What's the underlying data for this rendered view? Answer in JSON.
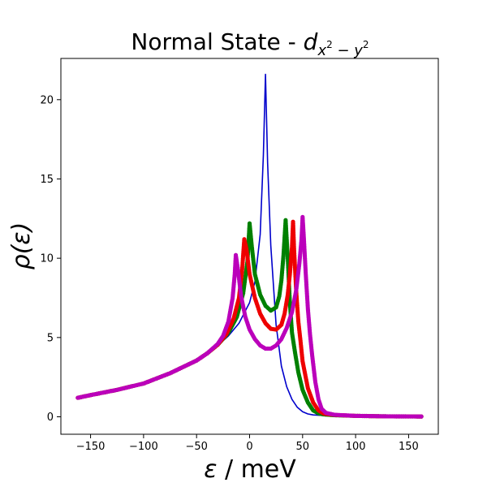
{
  "chart_data": {
    "type": "scatter",
    "title": "Normal State - ",
    "title_math": {
      "base": "d",
      "sub_a": "x",
      "sub_a_sup": "2",
      "sub_mid": " − ",
      "sub_b": "y",
      "sub_b_sup": "2"
    },
    "xlabel_symbol": "ε",
    "xlabel_unit": " / meV",
    "ylabel": "ρ(ε)",
    "xlim": [
      -178,
      178
    ],
    "ylim": [
      -1.1,
      22.6
    ],
    "xticks": [
      -150,
      -100,
      -50,
      0,
      50,
      100,
      150
    ],
    "xtick_labels": [
      "−150",
      "−100",
      "−50",
      "0",
      "50",
      "100",
      "150"
    ],
    "yticks": [
      0,
      5,
      10,
      15,
      20
    ],
    "ytick_labels": [
      "0",
      "5",
      "10",
      "15",
      "20"
    ],
    "series": [
      {
        "name": "blue",
        "style": "line",
        "color": "#0000cc",
        "points": [
          [
            -162,
            1.2
          ],
          [
            -150,
            1.37
          ],
          [
            -125,
            1.7
          ],
          [
            -100,
            2.1
          ],
          [
            -75,
            2.75
          ],
          [
            -50,
            3.55
          ],
          [
            -40,
            4.0
          ],
          [
            -30,
            4.5
          ],
          [
            -20,
            5.1
          ],
          [
            -10,
            5.9
          ],
          [
            0,
            7.2
          ],
          [
            5,
            8.5
          ],
          [
            10,
            11.5
          ],
          [
            13,
            16.5
          ],
          [
            15,
            21.6
          ],
          [
            17,
            16.0
          ],
          [
            20,
            10.8
          ],
          [
            25,
            5.8
          ],
          [
            30,
            3.2
          ],
          [
            35,
            1.9
          ],
          [
            40,
            1.1
          ],
          [
            45,
            0.6
          ],
          [
            50,
            0.32
          ],
          [
            55,
            0.18
          ],
          [
            60,
            0.12
          ],
          [
            70,
            0.08
          ],
          [
            80,
            0.06
          ],
          [
            100,
            0.04
          ],
          [
            130,
            0.02
          ],
          [
            162,
            0.01
          ]
        ]
      },
      {
        "name": "green",
        "style": "markers",
        "color": "#008000",
        "points": [
          [
            -162,
            1.2
          ],
          [
            -150,
            1.37
          ],
          [
            -125,
            1.7
          ],
          [
            -100,
            2.1
          ],
          [
            -75,
            2.75
          ],
          [
            -50,
            3.55
          ],
          [
            -40,
            4.0
          ],
          [
            -30,
            4.55
          ],
          [
            -20,
            5.3
          ],
          [
            -12,
            6.3
          ],
          [
            -6,
            7.8
          ],
          [
            -2,
            9.8
          ],
          [
            0,
            12.2
          ],
          [
            2,
            10.8
          ],
          [
            5,
            9.0
          ],
          [
            10,
            7.7
          ],
          [
            15,
            7.0
          ],
          [
            20,
            6.7
          ],
          [
            25,
            6.9
          ],
          [
            28,
            7.6
          ],
          [
            30,
            8.6
          ],
          [
            32,
            10.2
          ],
          [
            34,
            12.4
          ],
          [
            36,
            10.0
          ],
          [
            38,
            7.2
          ],
          [
            40,
            5.3
          ],
          [
            43,
            4.0
          ],
          [
            46,
            2.8
          ],
          [
            50,
            1.7
          ],
          [
            55,
            0.9
          ],
          [
            60,
            0.4
          ],
          [
            65,
            0.22
          ],
          [
            70,
            0.15
          ],
          [
            80,
            0.1
          ],
          [
            100,
            0.06
          ],
          [
            130,
            0.03
          ],
          [
            162,
            0.02
          ]
        ]
      },
      {
        "name": "red",
        "style": "markers",
        "color": "#ee0000",
        "points": [
          [
            -162,
            1.2
          ],
          [
            -150,
            1.37
          ],
          [
            -125,
            1.7
          ],
          [
            -100,
            2.1
          ],
          [
            -75,
            2.75
          ],
          [
            -50,
            3.55
          ],
          [
            -40,
            4.0
          ],
          [
            -30,
            4.55
          ],
          [
            -22,
            5.2
          ],
          [
            -15,
            6.2
          ],
          [
            -10,
            7.5
          ],
          [
            -7,
            9.3
          ],
          [
            -5,
            11.2
          ],
          [
            -3,
            10.6
          ],
          [
            0,
            9.0
          ],
          [
            5,
            7.5
          ],
          [
            10,
            6.5
          ],
          [
            15,
            5.9
          ],
          [
            20,
            5.55
          ],
          [
            25,
            5.5
          ],
          [
            30,
            5.8
          ],
          [
            33,
            6.5
          ],
          [
            36,
            7.7
          ],
          [
            38,
            9.0
          ],
          [
            40,
            10.7
          ],
          [
            41,
            12.3
          ],
          [
            42,
            10.5
          ],
          [
            44,
            7.9
          ],
          [
            46,
            6.0
          ],
          [
            48,
            4.8
          ],
          [
            50,
            3.5
          ],
          [
            55,
            1.8
          ],
          [
            60,
            0.9
          ],
          [
            65,
            0.4
          ],
          [
            70,
            0.2
          ],
          [
            80,
            0.12
          ],
          [
            100,
            0.06
          ],
          [
            130,
            0.03
          ],
          [
            162,
            0.02
          ]
        ]
      },
      {
        "name": "magenta",
        "style": "markers",
        "color": "#bb00bb",
        "points": [
          [
            -162,
            1.2
          ],
          [
            -150,
            1.37
          ],
          [
            -125,
            1.7
          ],
          [
            -100,
            2.1
          ],
          [
            -75,
            2.75
          ],
          [
            -50,
            3.55
          ],
          [
            -40,
            4.0
          ],
          [
            -30,
            4.6
          ],
          [
            -25,
            5.1
          ],
          [
            -20,
            6.0
          ],
          [
            -16,
            7.5
          ],
          [
            -14,
            9.0
          ],
          [
            -13,
            10.2
          ],
          [
            -11,
            9.3
          ],
          [
            -8,
            7.6
          ],
          [
            -4,
            6.3
          ],
          [
            0,
            5.5
          ],
          [
            5,
            4.9
          ],
          [
            10,
            4.5
          ],
          [
            15,
            4.3
          ],
          [
            20,
            4.3
          ],
          [
            25,
            4.5
          ],
          [
            30,
            4.9
          ],
          [
            35,
            5.6
          ],
          [
            40,
            6.6
          ],
          [
            44,
            8.0
          ],
          [
            47,
            9.7
          ],
          [
            49,
            11.2
          ],
          [
            50,
            12.6
          ],
          [
            51,
            11.5
          ],
          [
            53,
            9.0
          ],
          [
            55,
            6.8
          ],
          [
            57,
            5.2
          ],
          [
            59,
            3.9
          ],
          [
            62,
            2.2
          ],
          [
            65,
            1.1
          ],
          [
            68,
            0.5
          ],
          [
            72,
            0.25
          ],
          [
            80,
            0.13
          ],
          [
            100,
            0.06
          ],
          [
            130,
            0.03
          ],
          [
            162,
            0.02
          ]
        ]
      }
    ]
  }
}
